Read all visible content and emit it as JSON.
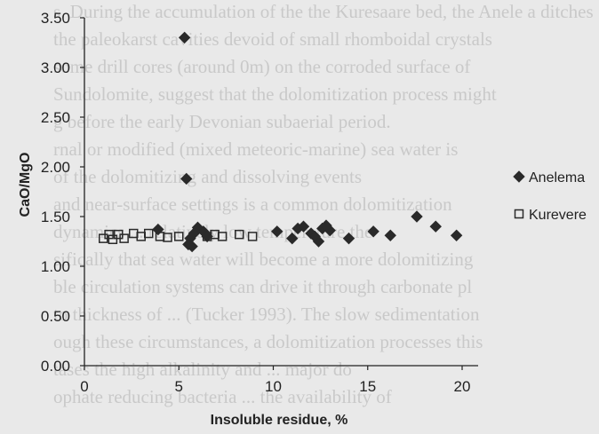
{
  "chart_data": {
    "type": "scatter",
    "xlabel": "Insoluble residue, %",
    "ylabel": "CaO/MgO",
    "xlim": [
      0,
      20
    ],
    "ylim": [
      0,
      3.5
    ],
    "x_ticks": [
      "0",
      "5",
      "10",
      "15",
      "20"
    ],
    "y_ticks": [
      "0.00",
      "0.50",
      "1.00",
      "1.50",
      "2.00",
      "2.50",
      "3.00",
      "3.50"
    ],
    "grid": false,
    "legend_position": "right",
    "series": [
      {
        "name": "Anelema",
        "marker": "diamond",
        "color": "#2a2a2a",
        "points": [
          [
            5.3,
            3.3
          ],
          [
            5.4,
            1.88
          ],
          [
            3.9,
            1.37
          ],
          [
            5.6,
            1.28
          ],
          [
            5.8,
            1.33
          ],
          [
            6.0,
            1.39
          ],
          [
            5.7,
            1.2
          ],
          [
            6.3,
            1.35
          ],
          [
            6.5,
            1.3
          ],
          [
            5.5,
            1.22
          ],
          [
            10.2,
            1.35
          ],
          [
            11.3,
            1.38
          ],
          [
            11.0,
            1.28
          ],
          [
            11.6,
            1.4
          ],
          [
            12.0,
            1.33
          ],
          [
            12.4,
            1.25
          ],
          [
            12.6,
            1.38
          ],
          [
            12.2,
            1.3
          ],
          [
            13.0,
            1.36
          ],
          [
            12.8,
            1.41
          ],
          [
            14.0,
            1.28
          ],
          [
            15.3,
            1.35
          ],
          [
            16.2,
            1.31
          ],
          [
            17.6,
            1.5
          ],
          [
            18.6,
            1.4
          ],
          [
            19.7,
            1.31
          ]
        ]
      },
      {
        "name": "Kurevere",
        "marker": "square",
        "color": "#2a2a2a",
        "points": [
          [
            1.0,
            1.28
          ],
          [
            1.3,
            1.32
          ],
          [
            1.5,
            1.27
          ],
          [
            1.8,
            1.32
          ],
          [
            2.1,
            1.28
          ],
          [
            2.6,
            1.33
          ],
          [
            3.0,
            1.3
          ],
          [
            3.4,
            1.33
          ],
          [
            4.0,
            1.3
          ],
          [
            4.4,
            1.29
          ],
          [
            5.0,
            1.3
          ],
          [
            6.5,
            1.3
          ],
          [
            6.9,
            1.32
          ],
          [
            7.3,
            1.3
          ],
          [
            8.2,
            1.32
          ],
          [
            8.9,
            1.3
          ]
        ]
      }
    ]
  },
  "background_text": [
    "s. During the accumulation of the the Kuresaare bed, the Anele a ditches",
    "the paleokarst cavities devoid of small rhomboidal crystals",
    "some drill cores (around 0m) on the corroded surface of",
    "Sundolomite, suggest that the dolomitization process might",
    "g before the early Devonian subaerial period.",
    "rnal or modified (mixed meteoric-marine) sea water is",
    "of the dolomitizing and dissolving events",
    "and near-surface settings is a common dolomitization",
    "dynamics ... relatively low temperature the",
    "sifically that sea water will become a more dolomitizing",
    "ble circulation systems can drive it through carbonate pl",
    "to thickness of ... (Tucker 1993). The slow sedimentation",
    "ough these circumstances, a dolomitization processes this",
    "tases the high alkalinity and ... major do",
    "ophate reducing bacteria ... the availability of"
  ]
}
